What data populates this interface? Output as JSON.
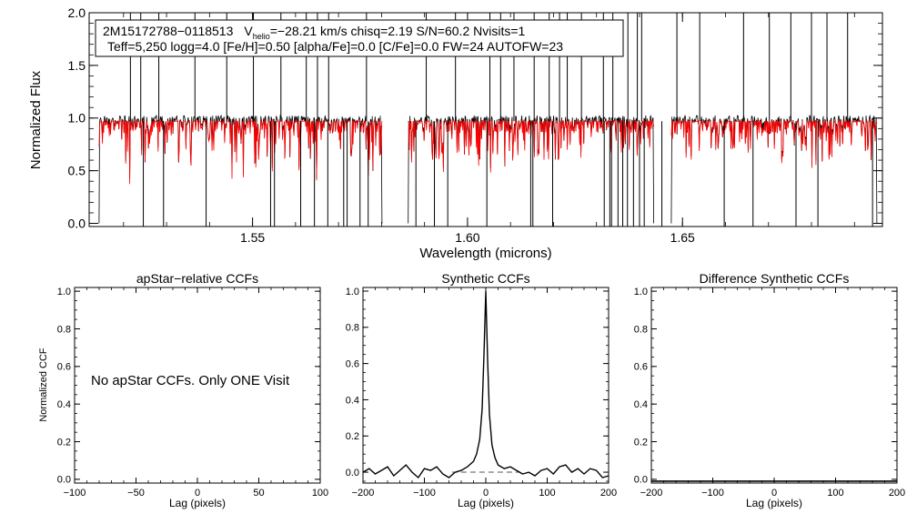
{
  "chart_data": [
    {
      "id": "spectrum",
      "type": "line",
      "xlabel": "Wavelength (microns)",
      "ylabel": "Normalized Flux",
      "xlim": [
        1.512,
        1.6965
      ],
      "ylim": [
        -0.03,
        2.0
      ],
      "xticks": [
        1.55,
        1.6,
        1.65
      ],
      "xtick_labels": [
        "1.55",
        "1.60",
        "1.65"
      ],
      "yticks": [
        0.0,
        0.5,
        1.0,
        1.5,
        2.0
      ],
      "ytick_labels": [
        "0.0",
        "0.5",
        "1.0",
        "1.5",
        "2.0"
      ],
      "annotation": {
        "line1_star": "2M15172788−0118513",
        "line1_v": "V",
        "line1_sub": "helio",
        "line1_rest": "=−28.21 km/s  chisq=2.19  S/N=60.2  Nvisits=1",
        "line2": "Teff=5,250 logg=4.0 [Fe/H]=0.50 [alpha/Fe]=0.0 [C/Fe]=0.0 FW=24 AUTOFW=23"
      },
      "chips": [
        [
          1.5143,
          1.5801
        ],
        [
          1.5862,
          1.6433
        ],
        [
          1.6474,
          1.6952
        ]
      ],
      "continuum": 0.97,
      "observed_color": "#000000",
      "model_color": "#ff0000",
      "series": [
        {
          "name": "observed",
          "color": "#000000",
          "deep_lines": [
            1.5246,
            1.5293,
            1.5392,
            1.5542,
            1.5551,
            1.5612,
            1.5644,
            1.5675,
            1.5712,
            1.572,
            1.575,
            1.5769,
            1.588,
            1.5923,
            1.5954,
            1.6045,
            1.6147,
            1.6152,
            1.6198,
            1.6318,
            1.6331,
            1.6335,
            1.635,
            1.6361,
            1.6372,
            1.6386,
            1.64,
            1.6411,
            1.6452,
            1.6597,
            1.6664,
            1.6764,
            1.6815,
            1.6942
          ],
          "spikes": [
            1.5216,
            1.524,
            1.5282,
            1.5366,
            1.544,
            1.5502,
            1.5566,
            1.5625,
            1.5651,
            1.5677,
            1.5765,
            1.5904,
            1.5972,
            1.6052,
            1.6077,
            1.6108,
            1.6155,
            1.619,
            1.6214,
            1.6232,
            1.6265,
            1.6316,
            1.6338,
            1.6373,
            1.6395,
            1.6405,
            1.6487,
            1.654,
            1.6642,
            1.6702,
            1.6752,
            1.68,
            1.6836,
            1.6884
          ]
        },
        {
          "name": "model",
          "color": "#ff0000"
        }
      ]
    },
    {
      "id": "apstar",
      "type": "line",
      "title": "apStar−relative CCFs",
      "xlabel": "Lag (pixels)",
      "ylabel": "Normalized CCF",
      "xlim": [
        -100,
        100
      ],
      "ylim": [
        -0.02,
        1.02
      ],
      "xticks": [
        -100,
        -50,
        0,
        50,
        100
      ],
      "xtick_labels": [
        "−100",
        "−50",
        "0",
        "50",
        "100"
      ],
      "yticks": [
        0.0,
        0.2,
        0.4,
        0.6,
        0.8,
        1.0
      ],
      "ytick_labels": [
        "0.0",
        "0.2",
        "0.4",
        "0.6",
        "0.8",
        "1.0"
      ],
      "message": "No apStar CCFs.  Only ONE Visit",
      "series": []
    },
    {
      "id": "synthetic",
      "type": "line",
      "title": "Synthetic CCFs",
      "xlabel": "Lag (pixels)",
      "xlim": [
        -200,
        200
      ],
      "ylim": [
        -0.06,
        1.02
      ],
      "xticks": [
        -200,
        -100,
        0,
        100,
        200
      ],
      "xtick_labels": [
        "−200",
        "−100",
        "0",
        "100",
        "200"
      ],
      "yticks": [
        0.0,
        0.2,
        0.4,
        0.6,
        0.8,
        1.0
      ],
      "ytick_labels": [
        "0.0",
        "0.2",
        "0.4",
        "0.6",
        "0.8",
        "1.0"
      ],
      "reference_line": {
        "y": 0.0,
        "x_range": [
          -55,
          55
        ],
        "style": "dashed",
        "color": "#555555"
      },
      "series": [
        {
          "name": "ccf",
          "color": "#000000",
          "x": [
            -200,
            -190,
            -180,
            -170,
            -160,
            -150,
            -140,
            -130,
            -120,
            -110,
            -100,
            -90,
            -80,
            -70,
            -60,
            -50,
            -40,
            -30,
            -20,
            -15,
            -10,
            -6,
            -3,
            0,
            3,
            6,
            10,
            15,
            20,
            30,
            40,
            50,
            60,
            70,
            80,
            90,
            100,
            110,
            120,
            130,
            140,
            150,
            160,
            170,
            180,
            190,
            200
          ],
          "y": [
            0.0,
            0.02,
            -0.01,
            0.01,
            0.03,
            -0.02,
            0.01,
            0.04,
            0.0,
            -0.03,
            0.02,
            0.01,
            0.03,
            -0.01,
            -0.03,
            0.0,
            0.01,
            0.03,
            0.06,
            0.1,
            0.18,
            0.35,
            0.65,
            1.0,
            0.62,
            0.32,
            0.15,
            0.08,
            0.04,
            0.02,
            0.03,
            0.01,
            -0.01,
            0.0,
            -0.02,
            0.01,
            0.02,
            -0.01,
            0.03,
            0.04,
            0.0,
            0.02,
            -0.01,
            0.02,
            0.01,
            -0.03,
            -0.02
          ]
        }
      ]
    },
    {
      "id": "difference",
      "type": "line",
      "title": "Difference Synthetic CCFs",
      "xlabel": "Lag (pixels)",
      "xlim": [
        -200,
        200
      ],
      "ylim": [
        -0.02,
        1.02
      ],
      "xticks": [
        -200,
        -100,
        0,
        100,
        200
      ],
      "xtick_labels": [
        "−200",
        "−100",
        "0",
        "100",
        "200"
      ],
      "yticks": [
        0.0,
        0.2,
        0.4,
        0.6,
        0.8,
        1.0
      ],
      "ytick_labels": [
        "0.0",
        "0.2",
        "0.4",
        "0.6",
        "0.8",
        "1.0"
      ],
      "series": [
        {
          "name": "difference",
          "color": "#000000",
          "x": [
            -200,
            -100,
            0,
            100,
            200
          ],
          "y": [
            -0.01,
            -0.01,
            -0.01,
            -0.01,
            -0.01
          ]
        }
      ]
    }
  ]
}
